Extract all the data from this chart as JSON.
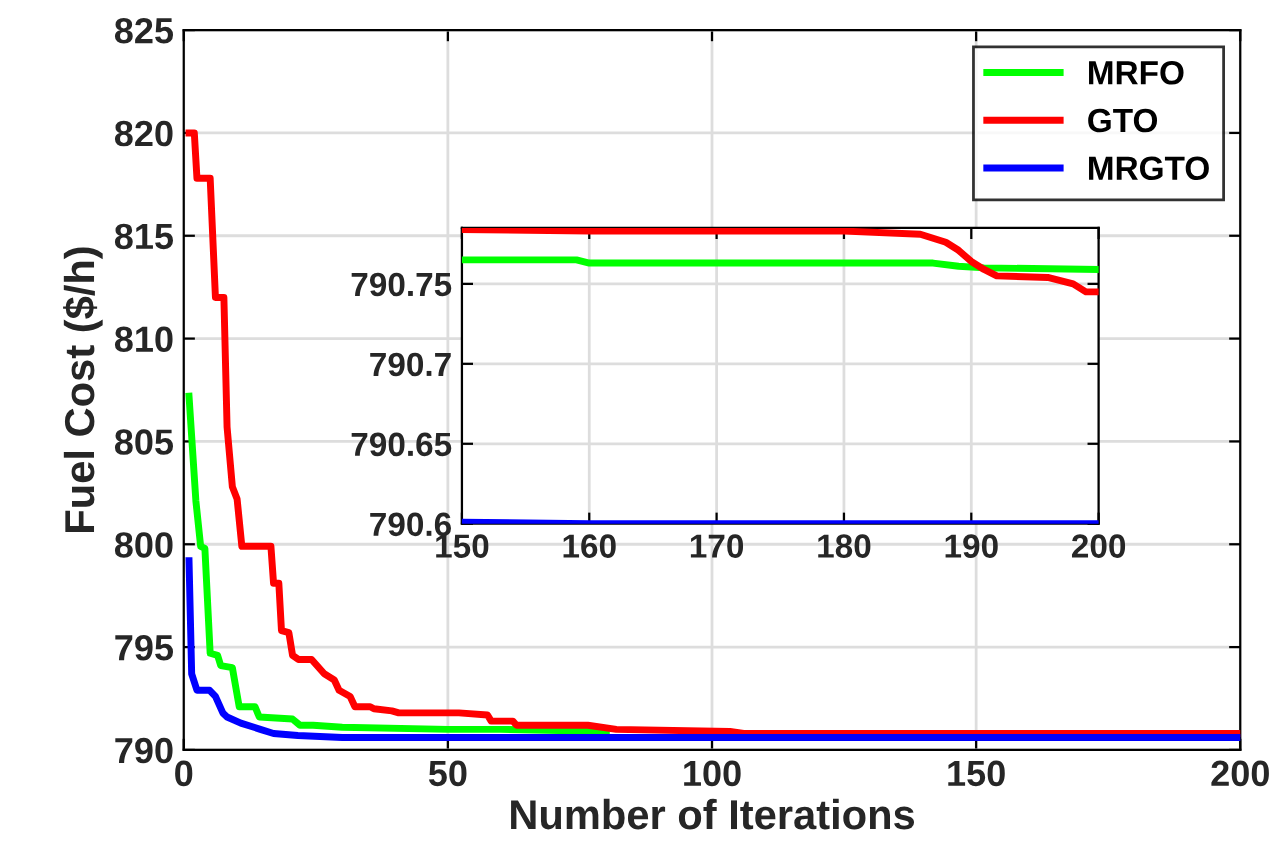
{
  "chart_data": [
    {
      "type": "line",
      "xlabel": "Number of Iterations",
      "ylabel": "Fuel Cost ($/h)",
      "xlim": [
        0,
        200
      ],
      "ylim": [
        790,
        825
      ],
      "xticks": [
        0,
        50,
        100,
        150,
        200
      ],
      "yticks": [
        790,
        795,
        800,
        805,
        810,
        815,
        820,
        825
      ],
      "grid": true,
      "legend": "top right",
      "line_style": "solid",
      "marker": "none",
      "series": [
        {
          "name": "MRFO",
          "color": "#00ff00",
          "x": [
            1,
            2.3,
            3.2,
            4,
            5,
            6.4,
            7,
            9.2,
            10.5,
            13.5,
            14.3,
            20.6,
            22,
            24.5,
            30,
            50,
            60,
            80
          ],
          "values": [
            807.2,
            802.1,
            799.9,
            799.8,
            794.7,
            794.6,
            794.1,
            794.0,
            792.1,
            792.1,
            791.6,
            791.5,
            791.2,
            791.2,
            791.1,
            791.0,
            791.0,
            790.9
          ]
        },
        {
          "name": "GTO",
          "color": "#ff0000",
          "x": [
            1,
            2,
            2.5,
            5,
            6,
            7.6,
            8.2,
            9.2,
            10.1,
            11,
            16.5,
            17,
            18,
            18.5,
            19.9,
            20.6,
            21.7,
            24.2,
            26.6,
            28.5,
            29.4,
            31.5,
            32.4,
            35.3,
            36,
            39.4,
            40.7,
            42.7,
            44,
            52.1,
            57.5,
            58.2,
            62.3,
            63,
            76.5,
            81.9,
            103.4,
            106,
            200
          ],
          "values": [
            820,
            820,
            817.8,
            817.8,
            812.0,
            812.0,
            805.7,
            802.8,
            802.2,
            799.9,
            799.9,
            798.1,
            798.1,
            795.8,
            795.7,
            794.6,
            794.4,
            794.4,
            793.7,
            793.4,
            792.9,
            792.6,
            792.1,
            792.1,
            792.0,
            791.9,
            791.8,
            791.8,
            791.8,
            791.8,
            791.7,
            791.4,
            791.4,
            791.2,
            791.2,
            791.0,
            790.9,
            790.8,
            790.8
          ]
        },
        {
          "name": "MRGTO",
          "color": "#0000ff",
          "x": [
            1,
            1.5,
            2.5,
            4.9,
            6,
            7.4,
            8.2,
            10.8,
            13.3,
            14.5,
            17,
            21.6,
            30,
            150,
            200
          ],
          "values": [
            799.2,
            793.7,
            792.9,
            792.9,
            792.6,
            791.8,
            791.6,
            791.3,
            791.1,
            791.0,
            790.8,
            790.7,
            790.6,
            790.6,
            790.6
          ]
        }
      ]
    },
    {
      "type": "line",
      "xlim": [
        150,
        200
      ],
      "ylim": [
        790.6,
        790.785
      ],
      "xticks": [
        150,
        160,
        170,
        180,
        190,
        200
      ],
      "yticks": [
        790.6,
        790.65,
        790.7,
        790.75
      ],
      "grid": true,
      "line_style": "solid",
      "marker": "none",
      "series": [
        {
          "color": "#00ff00",
          "x": [
            150,
            159,
            160,
            187,
            189,
            191,
            200
          ],
          "values": [
            790.765,
            790.765,
            790.763,
            790.763,
            790.761,
            790.76,
            790.759
          ]
        },
        {
          "color": "#ff0000",
          "x": [
            150,
            160,
            180,
            186,
            188,
            189,
            190,
            191,
            192,
            196,
            198,
            199,
            200
          ],
          "values": [
            790.784,
            790.783,
            790.783,
            790.781,
            790.776,
            790.771,
            790.764,
            790.759,
            790.755,
            790.754,
            790.75,
            790.745,
            790.745
          ]
        },
        {
          "color": "#0000ff",
          "x": [
            150,
            160,
            200
          ],
          "values": [
            790.601,
            790.6,
            790.6
          ]
        }
      ]
    }
  ]
}
